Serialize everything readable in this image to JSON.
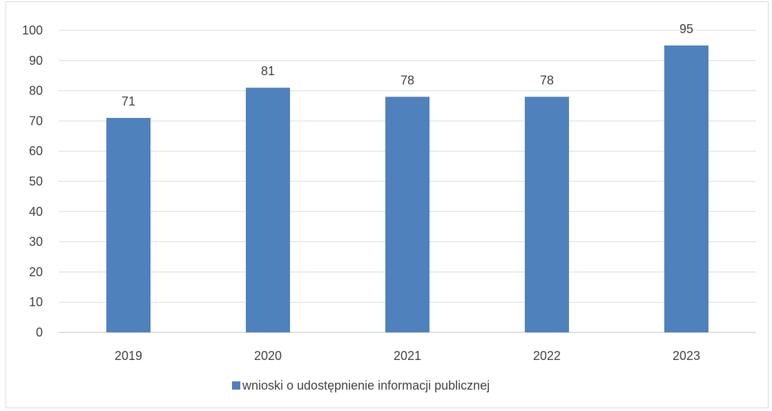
{
  "chart_data": {
    "type": "bar",
    "title": "",
    "xlabel": "",
    "ylabel": "",
    "categories": [
      "2019",
      "2020",
      "2021",
      "2022",
      "2023"
    ],
    "series": [
      {
        "name": "wnioski o udostępnienie informacji publicznej",
        "values": [
          71,
          81,
          78,
          78,
          95
        ],
        "color": "#4f81bd"
      }
    ],
    "ylim": [
      0,
      100
    ],
    "yticks": [
      0,
      10,
      20,
      30,
      40,
      50,
      60,
      70,
      80,
      90,
      100
    ],
    "grid": true,
    "legend_position": "bottom",
    "data_labels": true
  }
}
